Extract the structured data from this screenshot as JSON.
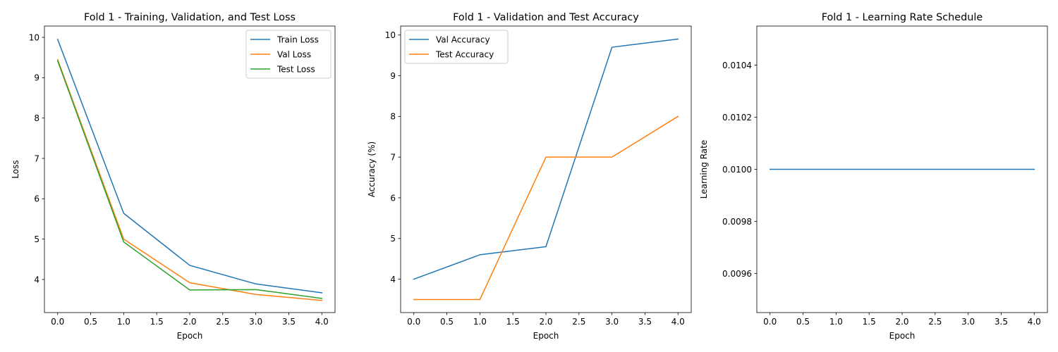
{
  "chart_data": [
    {
      "type": "line",
      "title": "Fold 1 - Training, Validation, and Test Loss",
      "xlabel": "Epoch",
      "ylabel": "Loss",
      "xlim": [
        -0.2,
        4.2
      ],
      "ylim": [
        3.18,
        10.28
      ],
      "xticks": [
        0.0,
        0.5,
        1.0,
        1.5,
        2.0,
        2.5,
        3.0,
        3.5,
        4.0
      ],
      "xtick_labels": [
        "0.0",
        "0.5",
        "1.0",
        "1.5",
        "2.0",
        "2.5",
        "3.0",
        "3.5",
        "4.0"
      ],
      "yticks": [
        4,
        5,
        6,
        7,
        8,
        9,
        10
      ],
      "ytick_labels": [
        "4",
        "5",
        "6",
        "7",
        "8",
        "9",
        "10"
      ],
      "grid": false,
      "legend_position": "top-right",
      "x": [
        0,
        1,
        2,
        3,
        4
      ],
      "series": [
        {
          "name": "Train Loss",
          "color": "#1f77b4",
          "values": [
            9.95,
            5.64,
            4.35,
            3.89,
            3.67
          ]
        },
        {
          "name": "Val Loss",
          "color": "#ff7f0e",
          "values": [
            9.45,
            5.0,
            3.92,
            3.63,
            3.48
          ]
        },
        {
          "name": "Test Loss",
          "color": "#2ca02c",
          "values": [
            9.42,
            4.93,
            3.74,
            3.75,
            3.53
          ]
        }
      ]
    },
    {
      "type": "line",
      "title": "Fold 1 - Validation and Test Accuracy",
      "xlabel": "Epoch",
      "ylabel": "Accuracy (%)",
      "xlim": [
        -0.2,
        4.2
      ],
      "ylim": [
        3.18,
        10.22
      ],
      "xticks": [
        0.0,
        0.5,
        1.0,
        1.5,
        2.0,
        2.5,
        3.0,
        3.5,
        4.0
      ],
      "xtick_labels": [
        "0.0",
        "0.5",
        "1.0",
        "1.5",
        "2.0",
        "2.5",
        "3.0",
        "3.5",
        "4.0"
      ],
      "yticks": [
        4,
        5,
        6,
        7,
        8,
        9,
        10
      ],
      "ytick_labels": [
        "4",
        "5",
        "6",
        "7",
        "8",
        "9",
        "10"
      ],
      "grid": false,
      "legend_position": "top-left",
      "x": [
        0,
        1,
        2,
        3,
        4
      ],
      "series": [
        {
          "name": "Val Accuracy",
          "color": "#1f77b4",
          "values": [
            4.0,
            4.6,
            4.8,
            9.7,
            9.9
          ]
        },
        {
          "name": "Test Accuracy",
          "color": "#ff7f0e",
          "values": [
            3.5,
            3.5,
            7.0,
            7.0,
            8.0
          ]
        }
      ]
    },
    {
      "type": "line",
      "title": "Fold 1 - Learning Rate Schedule",
      "xlabel": "Epoch",
      "ylabel": "Learning Rate",
      "xlim": [
        -0.2,
        4.2
      ],
      "ylim": [
        0.00945,
        0.01055
      ],
      "xticks": [
        0.0,
        0.5,
        1.0,
        1.5,
        2.0,
        2.5,
        3.0,
        3.5,
        4.0
      ],
      "xtick_labels": [
        "0.0",
        "0.5",
        "1.0",
        "1.5",
        "2.0",
        "2.5",
        "3.0",
        "3.5",
        "4.0"
      ],
      "yticks": [
        0.0096,
        0.0098,
        0.01,
        0.0102,
        0.0104
      ],
      "ytick_labels": [
        "0.0096",
        "0.0098",
        "0.0100",
        "0.0102",
        "0.0104"
      ],
      "grid": false,
      "legend_position": "none",
      "x": [
        0,
        1,
        2,
        3,
        4
      ],
      "series": [
        {
          "color": "#1f77b4",
          "values": [
            0.01,
            0.01,
            0.01,
            0.01,
            0.01
          ]
        }
      ]
    }
  ]
}
